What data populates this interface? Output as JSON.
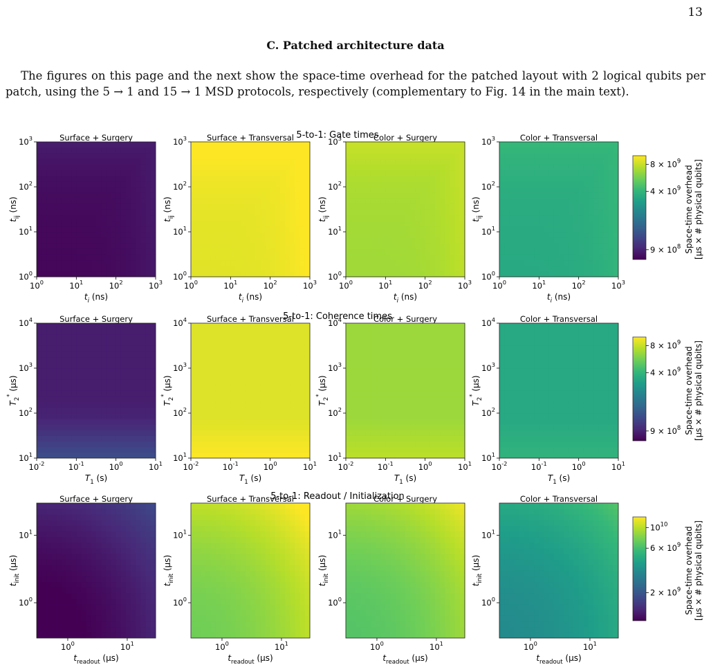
{
  "page": {
    "number": "13",
    "section_title": "C.    Patched architecture data",
    "intro_text": "The figures on this page and the next show the space-time overhead for the patched layout with 2 logical qubits per patch, using the 5 → 1 and 15 → 1 MSD protocols, respectively (complementary to Fig. 14 in the main text)."
  },
  "colors": {
    "viridis": [
      "#440154",
      "#482878",
      "#3e4989",
      "#31688e",
      "#26828e",
      "#1f9e89",
      "#35b779",
      "#6ece58",
      "#b5de2b",
      "#fde725"
    ]
  },
  "chart_data": [
    {
      "type": "heatmap",
      "row_title": "5-to-1: Gate times",
      "panel_titles": [
        "Surface + Surgery",
        "Surface + Transversal",
        "Color + Surgery",
        "Color + Transversal"
      ],
      "xlabel": "t_i (ns)",
      "ylabel": "t_ij (ns)",
      "x_scale": "log",
      "y_scale": "log",
      "xlim": [
        1,
        1000
      ],
      "ylim": [
        1,
        1000
      ],
      "x_ticks": [
        "10^0",
        "10^1",
        "10^2",
        "10^3"
      ],
      "y_ticks": [
        "10^0",
        "10^1",
        "10^2",
        "10^3"
      ],
      "colorbar_label": "Space-time overhead\n[μs × # physical qubits]",
      "colorbar_ticks": [
        "8 × 10^9",
        "4 × 10^9",
        "9 × 10^8"
      ],
      "colorbar_tick_values": [
        8000000000.0,
        4000000000.0,
        900000000.0
      ],
      "colorbar_range": [
        700000000.0,
        10000000000.0
      ],
      "approx_panel_levels": [
        0.03,
        0.97,
        0.87,
        0.62
      ]
    },
    {
      "type": "heatmap",
      "row_title": "5-to-1: Coherence times",
      "panel_titles": [
        "Surface + Surgery",
        "Surface + Transversal",
        "Color + Surgery",
        "Color + Transversal"
      ],
      "xlabel": "T_1 (s)",
      "ylabel": "T_2^* (μs)",
      "x_scale": "log",
      "y_scale": "log",
      "xlim": [
        0.01,
        10
      ],
      "ylim": [
        10,
        10000
      ],
      "x_ticks": [
        "10^-2",
        "10^-1",
        "10^0",
        "10^1"
      ],
      "y_ticks": [
        "10^1",
        "10^2",
        "10^3",
        "10^4"
      ],
      "colorbar_label": "Space-time overhead\n[μs × # physical qubits]",
      "colorbar_ticks": [
        "8 × 10^9",
        "4 × 10^9",
        "9 × 10^8"
      ],
      "colorbar_tick_values": [
        8000000000.0,
        4000000000.0,
        900000000.0
      ],
      "colorbar_range": [
        700000000.0,
        10000000000.0
      ],
      "approx_panel_levels": [
        0.08,
        0.95,
        0.85,
        0.6
      ]
    },
    {
      "type": "heatmap",
      "row_title": "5-to-1: Readout / Initialization",
      "panel_titles": [
        "Surface + Surgery",
        "Surface + Transversal",
        "Color + Surgery",
        "Color + Transversal"
      ],
      "xlabel": "t_readout (μs)",
      "ylabel": "t_init (μs)",
      "x_scale": "log",
      "y_scale": "log",
      "xlim": [
        0.3,
        30
      ],
      "ylim": [
        0.3,
        30
      ],
      "x_ticks": [
        "10^0",
        "10^1"
      ],
      "y_ticks": [
        "10^0",
        "10^1"
      ],
      "colorbar_label": "Space-time overhead\n[μs × # physical qubits]",
      "colorbar_ticks": [
        "10^10",
        "6 × 10^9",
        "2 × 10^9"
      ],
      "colorbar_tick_values": [
        10000000000.0,
        6000000000.0,
        2000000000.0
      ],
      "colorbar_range": [
        1000000000.0,
        13000000000.0
      ],
      "approx_panel_levels": [
        0.1,
        0.9,
        0.85,
        0.6
      ]
    }
  ]
}
